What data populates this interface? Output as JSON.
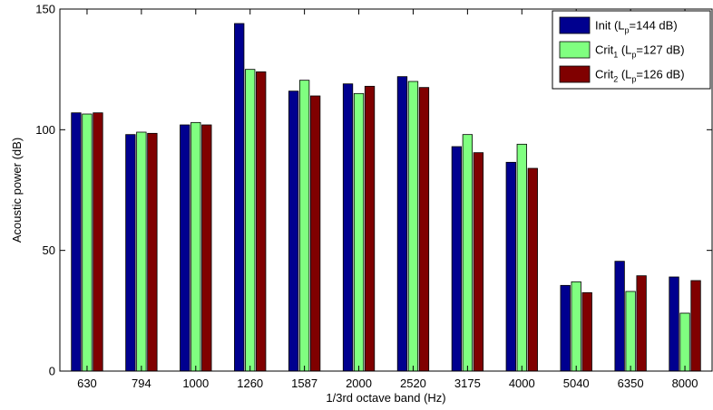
{
  "chart_data": {
    "type": "bar",
    "title": "",
    "xlabel": "1/3rd octave band (Hz)",
    "ylabel": "Acoustic power (dB)",
    "ylim": [
      0,
      150
    ],
    "yticks": [
      "0",
      "50",
      "100",
      "150"
    ],
    "categories": [
      "630",
      "794",
      "1000",
      "1260",
      "1587",
      "2000",
      "2520",
      "3175",
      "4000",
      "5040",
      "6350",
      "8000"
    ],
    "series": [
      {
        "name": "Init (Lp=144 dB)",
        "legend": {
          "base": "Init (L",
          "sub": "p",
          "rest": "=144 dB)"
        },
        "color": "#00008f",
        "values": [
          107,
          98,
          102,
          144,
          116,
          119,
          122,
          93,
          86.5,
          35.5,
          45.5,
          39
        ]
      },
      {
        "name": "Crit1 (Lp=127 dB)",
        "legend": {
          "base": "Crit",
          "sub1": "1",
          "mid": " (L",
          "sub2": "p",
          "rest": "=127 dB)"
        },
        "color": "#80ff80",
        "values": [
          106.5,
          99,
          103,
          125,
          120.5,
          115,
          120,
          98,
          94,
          37,
          33,
          24
        ]
      },
      {
        "name": "Crit2 (Lp=126 dB)",
        "legend": {
          "base": "Crit",
          "sub1": "2",
          "mid": " (L",
          "sub2": "p",
          "rest": "=126 dB)"
        },
        "color": "#800000",
        "values": [
          107,
          98.5,
          102,
          124,
          114,
          118,
          117.5,
          90.5,
          84,
          32.5,
          39.5,
          37.5
        ]
      }
    ],
    "grid": false,
    "legend_position": "top-right"
  }
}
